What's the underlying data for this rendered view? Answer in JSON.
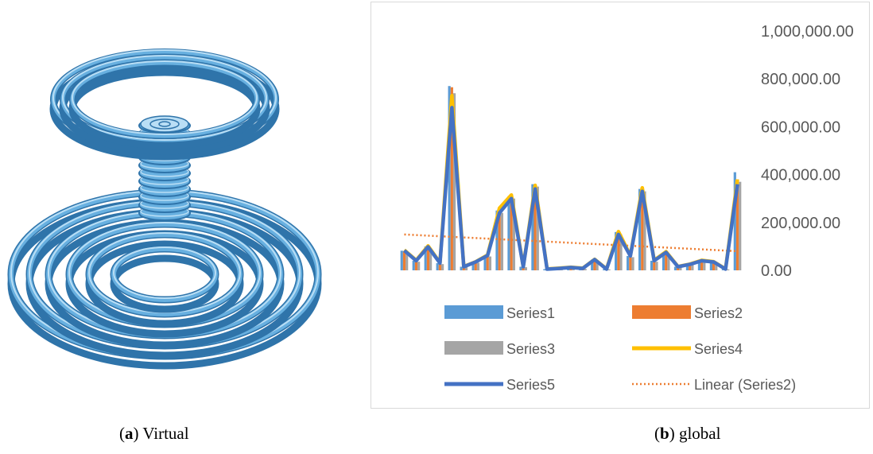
{
  "captions": {
    "a_label": "a",
    "a_text": " Virtual",
    "b_label": "b",
    "b_text": " global"
  },
  "colors": {
    "series1": "#5b9bd5",
    "series2": "#ed7d31",
    "series3": "#a5a5a5",
    "series4": "#ffc000",
    "series5": "#4472c4",
    "trend": "#ed7d31",
    "coil": "#6ab4e6"
  },
  "chart_data": {
    "type": "bar",
    "ylim": [
      0,
      1000000
    ],
    "yticks": [
      0,
      200000,
      400000,
      600000,
      800000,
      1000000
    ],
    "ytick_labels": [
      "0.00",
      "200,000.00",
      "400,000.00",
      "600,000.00",
      "800,000.00",
      "1,000,000.00"
    ],
    "y_axis_side": "right",
    "legend_position": "bottom",
    "grid": false,
    "series": [
      {
        "name": "Series1",
        "kind": "bar",
        "values": [
          82000,
          40000,
          100000,
          30000,
          770000,
          15000,
          35000,
          62000,
          250000,
          310000,
          15000,
          360000,
          5000,
          8000,
          12000,
          8000,
          45000,
          5000,
          160000,
          60000,
          340000,
          40000,
          75000,
          15000,
          25000,
          40000,
          35000,
          5000,
          410000
        ]
      },
      {
        "name": "Series2",
        "kind": "bar",
        "values": [
          80000,
          38000,
          95000,
          28000,
          765000,
          14000,
          34000,
          60000,
          245000,
          305000,
          14000,
          355000,
          4000,
          7000,
          11000,
          7000,
          44000,
          4000,
          155000,
          58000,
          335000,
          38000,
          72000,
          14000,
          24000,
          38000,
          34000,
          4000,
          380000
        ]
      },
      {
        "name": "Series3",
        "kind": "bar",
        "values": [
          78000,
          36000,
          92000,
          26000,
          740000,
          13000,
          32000,
          58000,
          240000,
          300000,
          13000,
          350000,
          4000,
          6000,
          10000,
          6000,
          42000,
          4000,
          150000,
          55000,
          330000,
          36000,
          70000,
          13000,
          22000,
          36000,
          32000,
          4000,
          370000
        ]
      },
      {
        "name": "Series4",
        "kind": "line",
        "values": [
          85000,
          42000,
          102000,
          32000,
          730000,
          16000,
          36000,
          64000,
          260000,
          315000,
          16000,
          355000,
          6000,
          9000,
          13000,
          9000,
          46000,
          6000,
          162000,
          62000,
          345000,
          42000,
          78000,
          16000,
          26000,
          42000,
          36000,
          6000,
          380000
        ]
      },
      {
        "name": "Series5",
        "kind": "line",
        "values": [
          83000,
          40000,
          98000,
          30000,
          680000,
          15000,
          35000,
          62000,
          240000,
          300000,
          15000,
          340000,
          5000,
          8000,
          12000,
          8000,
          45000,
          5000,
          150000,
          60000,
          330000,
          40000,
          75000,
          15000,
          25000,
          40000,
          35000,
          5000,
          360000
        ]
      }
    ],
    "trendline": {
      "name": "Linear (Series2)",
      "start": 150000,
      "end": 80000
    }
  }
}
